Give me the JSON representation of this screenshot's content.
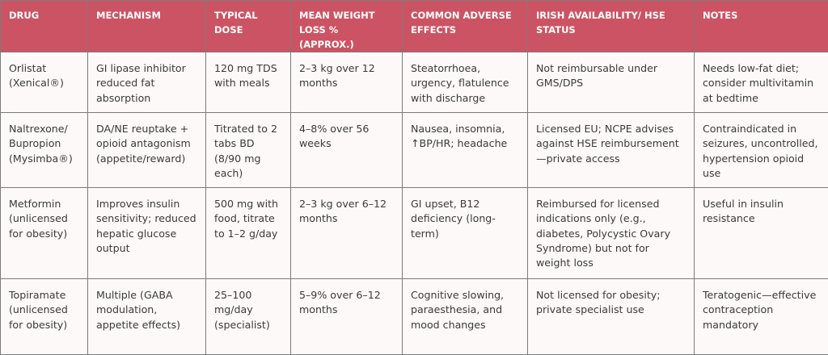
{
  "table": {
    "header_color": "#cc5363",
    "headers": [
      "DRUG",
      "MECHANISM",
      "TYPICAL DOSE",
      "MEAN WEIGHT LOSS % (APPROX.)",
      "COMMON ADVERSE EFFECTS",
      "IRISH AVAILABILITY/ HSE STATUS",
      "NOTES"
    ],
    "rows": [
      {
        "drug": "Orlistat (Xenical®)",
        "mechanism": "GI lipase inhibitor reduced fat absorption",
        "dose": "120 mg TDS with meals",
        "weight_loss": "2–3 kg over 12 months",
        "adverse_effects": "Steatorrhoea, urgency, flatulence with discharge",
        "availability": "Not reimbursable under GMS/DPS",
        "notes": "Needs low-fat diet; consider multivitamin at bedtime"
      },
      {
        "drug": "Naltrexone/ Bupropion (Mysimba®)",
        "mechanism": "DA/NE reuptake + opioid antagonism (appetite/reward)",
        "dose": "Titrated to 2 tabs BD (8/90 mg each)",
        "weight_loss": "4–8% over 56 weeks",
        "adverse_effects": "Nausea, insomnia, ↑BP/HR; headache",
        "availability": "Licensed EU; NCPE advises against HSE reimbursement—private access",
        "notes": "Contraindicated in seizures, uncontrolled, hypertension opioid use"
      },
      {
        "drug": "Metformin (unlicensed for obesity)",
        "mechanism": "Improves insulin sensitivity; reduced hepatic glucose output",
        "dose": "500 mg with food, titrate to 1–2 g/day",
        "weight_loss": "2–3 kg over 6–12 months",
        "adverse_effects": "GI upset, B12 deficiency (long-term)",
        "availability": "Reimbursed for licensed indications only (e.g., diabetes, Polycystic Ovary Syndrome) but not for weight loss",
        "notes": "Useful in insulin resistance"
      },
      {
        "drug": "Topiramate (unlicensed for obesity)",
        "mechanism": "Multiple (GABA modulation, appetite effects)",
        "dose": "25–100 mg/day (specialist)",
        "weight_loss": "5–9% over 6–12 months",
        "adverse_effects": "Cognitive slowing, paraesthesia, and mood changes",
        "availability": "Not licensed for obesity; private specialist use",
        "notes": "Teratogenic—effective contraception mandatory"
      }
    ]
  }
}
